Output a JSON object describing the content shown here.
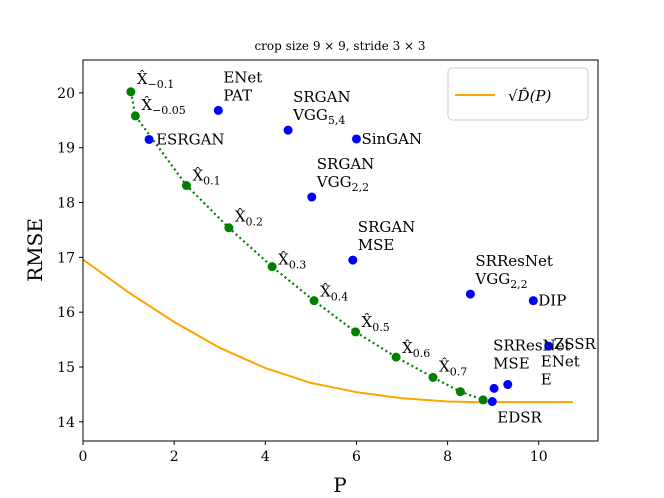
{
  "chart_data": {
    "type": "scatter",
    "title": "crop size 9 × 9, stride 3 × 3",
    "xlabel": "P",
    "ylabel": "RMSE",
    "xlim": [
      0,
      11.3
    ],
    "ylim": [
      13.65,
      20.6
    ],
    "xticks": [
      "0",
      "2",
      "4",
      "6",
      "8",
      "10"
    ],
    "yticks": [
      "14",
      "15",
      "16",
      "17",
      "18",
      "19",
      "20"
    ],
    "legend": {
      "label": "√D̂(P)",
      "position": "top-right",
      "color": "#ffa500"
    },
    "colors": {
      "methods": "#0000ff",
      "tradeoff": "#008000",
      "bound": "#ffa500"
    },
    "methods": [
      {
        "name": "ENet PAT",
        "x": 2.97,
        "y": 19.68
      },
      {
        "name": "SRGAN VGG5,4",
        "x": 4.5,
        "y": 19.32
      },
      {
        "name": "SinGAN",
        "x": 6.0,
        "y": 19.16
      },
      {
        "name": "ESRGAN",
        "x": 1.45,
        "y": 19.15
      },
      {
        "name": "SRGAN VGG2,2",
        "x": 5.02,
        "y": 18.1
      },
      {
        "name": "SRGAN MSE",
        "x": 5.92,
        "y": 16.95
      },
      {
        "name": "SRResNet VGG2,2",
        "x": 8.5,
        "y": 16.33
      },
      {
        "name": "DIP",
        "x": 9.88,
        "y": 16.21
      },
      {
        "name": "ZSSR",
        "x": 10.22,
        "y": 15.38
      },
      {
        "name": "SRResNet MSE",
        "x": 9.02,
        "y": 14.61
      },
      {
        "name": "ENet E",
        "x": 9.32,
        "y": 14.68
      },
      {
        "name": "EDSR",
        "x": 8.98,
        "y": 14.37
      }
    ],
    "tradeoff": [
      {
        "name": "X̂−0.1",
        "x": 1.05,
        "y": 20.02
      },
      {
        "name": "X̂−0.05",
        "x": 1.15,
        "y": 19.58
      },
      {
        "name": "X̂0.1",
        "x": 2.27,
        "y": 18.31
      },
      {
        "name": "X̂0.2",
        "x": 3.2,
        "y": 17.54
      },
      {
        "name": "X̂0.3",
        "x": 4.15,
        "y": 16.83
      },
      {
        "name": "X̂0.4",
        "x": 5.07,
        "y": 16.21
      },
      {
        "name": "X̂0.5",
        "x": 5.98,
        "y": 15.64
      },
      {
        "name": "X̂0.6",
        "x": 6.87,
        "y": 15.18
      },
      {
        "name": "X̂0.7",
        "x": 7.68,
        "y": 14.81
      },
      {
        "name": "",
        "x": 8.28,
        "y": 14.55
      },
      {
        "name": "",
        "x": 8.78,
        "y": 14.4
      }
    ],
    "bound_curve": {
      "label": "√D̂(P)",
      "x": [
        0,
        1,
        2,
        3,
        4,
        5,
        6,
        7,
        8,
        8.6,
        9.5,
        10.75
      ],
      "y": [
        16.96,
        16.36,
        15.82,
        15.35,
        14.98,
        14.71,
        14.54,
        14.43,
        14.37,
        14.36,
        14.36,
        14.36
      ]
    }
  }
}
